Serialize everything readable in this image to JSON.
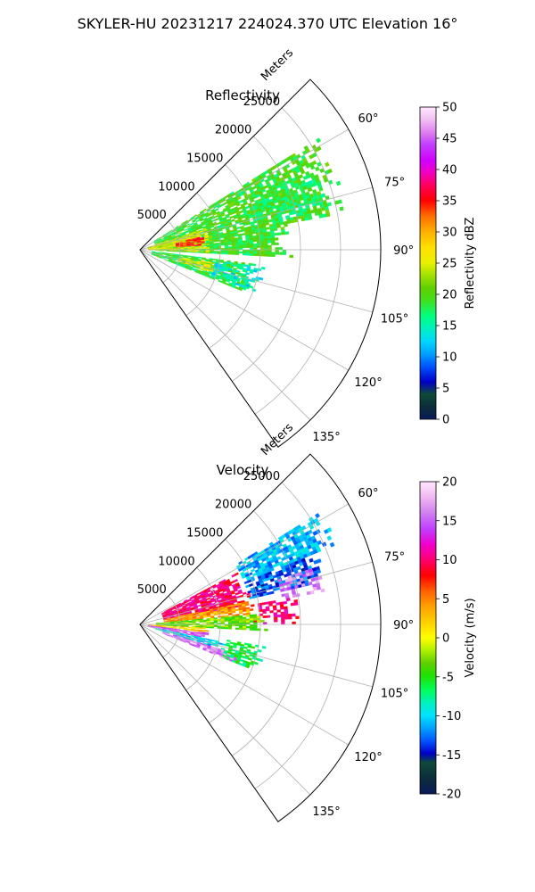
{
  "suptitle": "SKYLER-HU  20231217  224024.370 UTC Elevation 16°",
  "chart_data": [
    {
      "type": "heatmap",
      "projection": "polar-sector",
      "title": "Reflectivity",
      "range_label": "Meters",
      "range_ticks": [
        "5000",
        "10000",
        "15000",
        "20000",
        "25000"
      ],
      "range_values": [
        5000,
        10000,
        15000,
        20000,
        25000
      ],
      "rmax": 30000,
      "azimuth_limits": [
        45,
        145
      ],
      "azimuth_gridlines": [
        60,
        75,
        90,
        105,
        120,
        135
      ],
      "azimuth_ticks": [
        "60°",
        "75°",
        "90°",
        "105°",
        "120°",
        "135°"
      ],
      "grid": true,
      "colorbar": {
        "label": "Reflectivity dBZ",
        "min": 0,
        "max": 50,
        "ticks": [
          "0",
          "5",
          "10",
          "15",
          "20",
          "25",
          "30",
          "35",
          "40",
          "45",
          "50"
        ],
        "tick_values": [
          0,
          5,
          10,
          15,
          20,
          25,
          30,
          35,
          40,
          45,
          50
        ],
        "stops": [
          [
            0,
            "#0b1a5a"
          ],
          [
            0.04,
            "#0c2d3a"
          ],
          [
            0.08,
            "#0f4a3a"
          ],
          [
            0.12,
            "#0000c8"
          ],
          [
            0.17,
            "#0055ff"
          ],
          [
            0.21,
            "#00a0ff"
          ],
          [
            0.25,
            "#00d7ff"
          ],
          [
            0.29,
            "#00f0c0"
          ],
          [
            0.33,
            "#00ff80"
          ],
          [
            0.38,
            "#40e020"
          ],
          [
            0.42,
            "#60d000"
          ],
          [
            0.46,
            "#a0e000"
          ],
          [
            0.5,
            "#e8f000"
          ],
          [
            0.55,
            "#ffe000"
          ],
          [
            0.6,
            "#ffb000"
          ],
          [
            0.65,
            "#ff7000"
          ],
          [
            0.7,
            "#ff0000"
          ],
          [
            0.75,
            "#ff0060"
          ],
          [
            0.79,
            "#f000c0"
          ],
          [
            0.83,
            "#d000ff"
          ],
          [
            0.88,
            "#c040ff"
          ],
          [
            0.92,
            "#e080f0"
          ],
          [
            0.96,
            "#f0c0f0"
          ],
          [
            1,
            "#ffe8ff"
          ]
        ]
      },
      "echo_regions": [
        {
          "az": [
            58,
            80
          ],
          "r": [
            2000,
            26500
          ],
          "value": 19,
          "density": 0.75
        },
        {
          "az": [
            80,
            93
          ],
          "r": [
            2000,
            19000
          ],
          "value": 19,
          "density": 0.85
        },
        {
          "az": [
            97,
            112
          ],
          "r": [
            1500,
            14500
          ],
          "value": 18,
          "density": 0.8
        },
        {
          "az": [
            98,
            110
          ],
          "r": [
            9000,
            16000
          ],
          "value": 14,
          "density": 0.45
        },
        {
          "az": [
            72,
            92
          ],
          "r": [
            1000,
            9000
          ],
          "value": 25,
          "density": 0.75
        },
        {
          "az": [
            78,
            86
          ],
          "r": [
            4500,
            8000
          ],
          "value": 34,
          "density": 0.85
        },
        {
          "az": [
            100,
            108
          ],
          "r": [
            5000,
            9500
          ],
          "value": 25,
          "density": 0.6
        },
        {
          "az": [
            68,
            78
          ],
          "r": [
            15000,
            25000
          ],
          "value": 18,
          "density": 0.55
        }
      ]
    },
    {
      "type": "heatmap",
      "projection": "polar-sector",
      "title": "Velocity",
      "range_label": "Meters",
      "range_ticks": [
        "5000",
        "10000",
        "15000",
        "20000",
        "25000"
      ],
      "range_values": [
        5000,
        10000,
        15000,
        20000,
        25000
      ],
      "rmax": 30000,
      "azimuth_limits": [
        45,
        145
      ],
      "azimuth_gridlines": [
        60,
        75,
        90,
        105,
        120,
        135
      ],
      "azimuth_ticks": [
        "60°",
        "75°",
        "90°",
        "105°",
        "120°",
        "135°"
      ],
      "grid": true,
      "colorbar": {
        "label": "Velocity (m/s)",
        "min": -20,
        "max": 20,
        "ticks": [
          "-20",
          "-15",
          "-10",
          "-5",
          "0",
          "5",
          "10",
          "15",
          "20"
        ],
        "tick_values": [
          -20,
          -15,
          -10,
          -5,
          0,
          5,
          10,
          15,
          20
        ],
        "stops": [
          [
            0,
            "#0b1a5a"
          ],
          [
            0.05,
            "#0c2d3a"
          ],
          [
            0.1,
            "#0f4a3a"
          ],
          [
            0.13,
            "#0000c8"
          ],
          [
            0.17,
            "#0055ff"
          ],
          [
            0.21,
            "#00a0ff"
          ],
          [
            0.25,
            "#00e0ff"
          ],
          [
            0.29,
            "#00f0c0"
          ],
          [
            0.33,
            "#00ff60"
          ],
          [
            0.38,
            "#20e000"
          ],
          [
            0.42,
            "#60d000"
          ],
          [
            0.46,
            "#b0f000"
          ],
          [
            0.5,
            "#ffff00"
          ],
          [
            0.55,
            "#ffd000"
          ],
          [
            0.6,
            "#ffa000"
          ],
          [
            0.65,
            "#ff6000"
          ],
          [
            0.7,
            "#ff0000"
          ],
          [
            0.75,
            "#ff0070"
          ],
          [
            0.8,
            "#f000d0"
          ],
          [
            0.85,
            "#c040ff"
          ],
          [
            0.9,
            "#d080f0"
          ],
          [
            0.95,
            "#f0b8f0"
          ],
          [
            1,
            "#ffe8ff"
          ]
        ]
      },
      "echo_regions": [
        {
          "az": [
            58,
            68
          ],
          "r": [
            14000,
            26500
          ],
          "value": -11,
          "density": 0.75
        },
        {
          "az": [
            68,
            77
          ],
          "r": [
            14000,
            24000
          ],
          "value": -13,
          "density": 0.7
        },
        {
          "az": [
            72,
            80
          ],
          "r": [
            18000,
            23500
          ],
          "value": 16,
          "density": 0.55
        },
        {
          "az": [
            62,
            80
          ],
          "r": [
            3000,
            14000
          ],
          "value": 10,
          "density": 0.85
        },
        {
          "az": [
            78,
            85
          ],
          "r": [
            3000,
            15000
          ],
          "value": 4,
          "density": 0.8
        },
        {
          "az": [
            80,
            90
          ],
          "r": [
            14000,
            20000
          ],
          "value": 10,
          "density": 0.5
        },
        {
          "az": [
            85,
            93
          ],
          "r": [
            2000,
            16000
          ],
          "value": -3,
          "density": 0.8
        },
        {
          "az": [
            93,
            97
          ],
          "r": [
            1000,
            9000
          ],
          "value": 2,
          "density": 0.7
        },
        {
          "az": [
            97,
            102
          ],
          "r": [
            1000,
            9000
          ],
          "value": 15,
          "density": 0.8
        },
        {
          "az": [
            102,
            107
          ],
          "r": [
            2000,
            11000
          ],
          "value": -10,
          "density": 0.75
        },
        {
          "az": [
            107,
            112
          ],
          "r": [
            3000,
            14000
          ],
          "value": 16,
          "density": 0.8
        },
        {
          "az": [
            100,
            112
          ],
          "r": [
            11000,
            16000
          ],
          "value": -6,
          "density": 0.55
        }
      ]
    }
  ]
}
